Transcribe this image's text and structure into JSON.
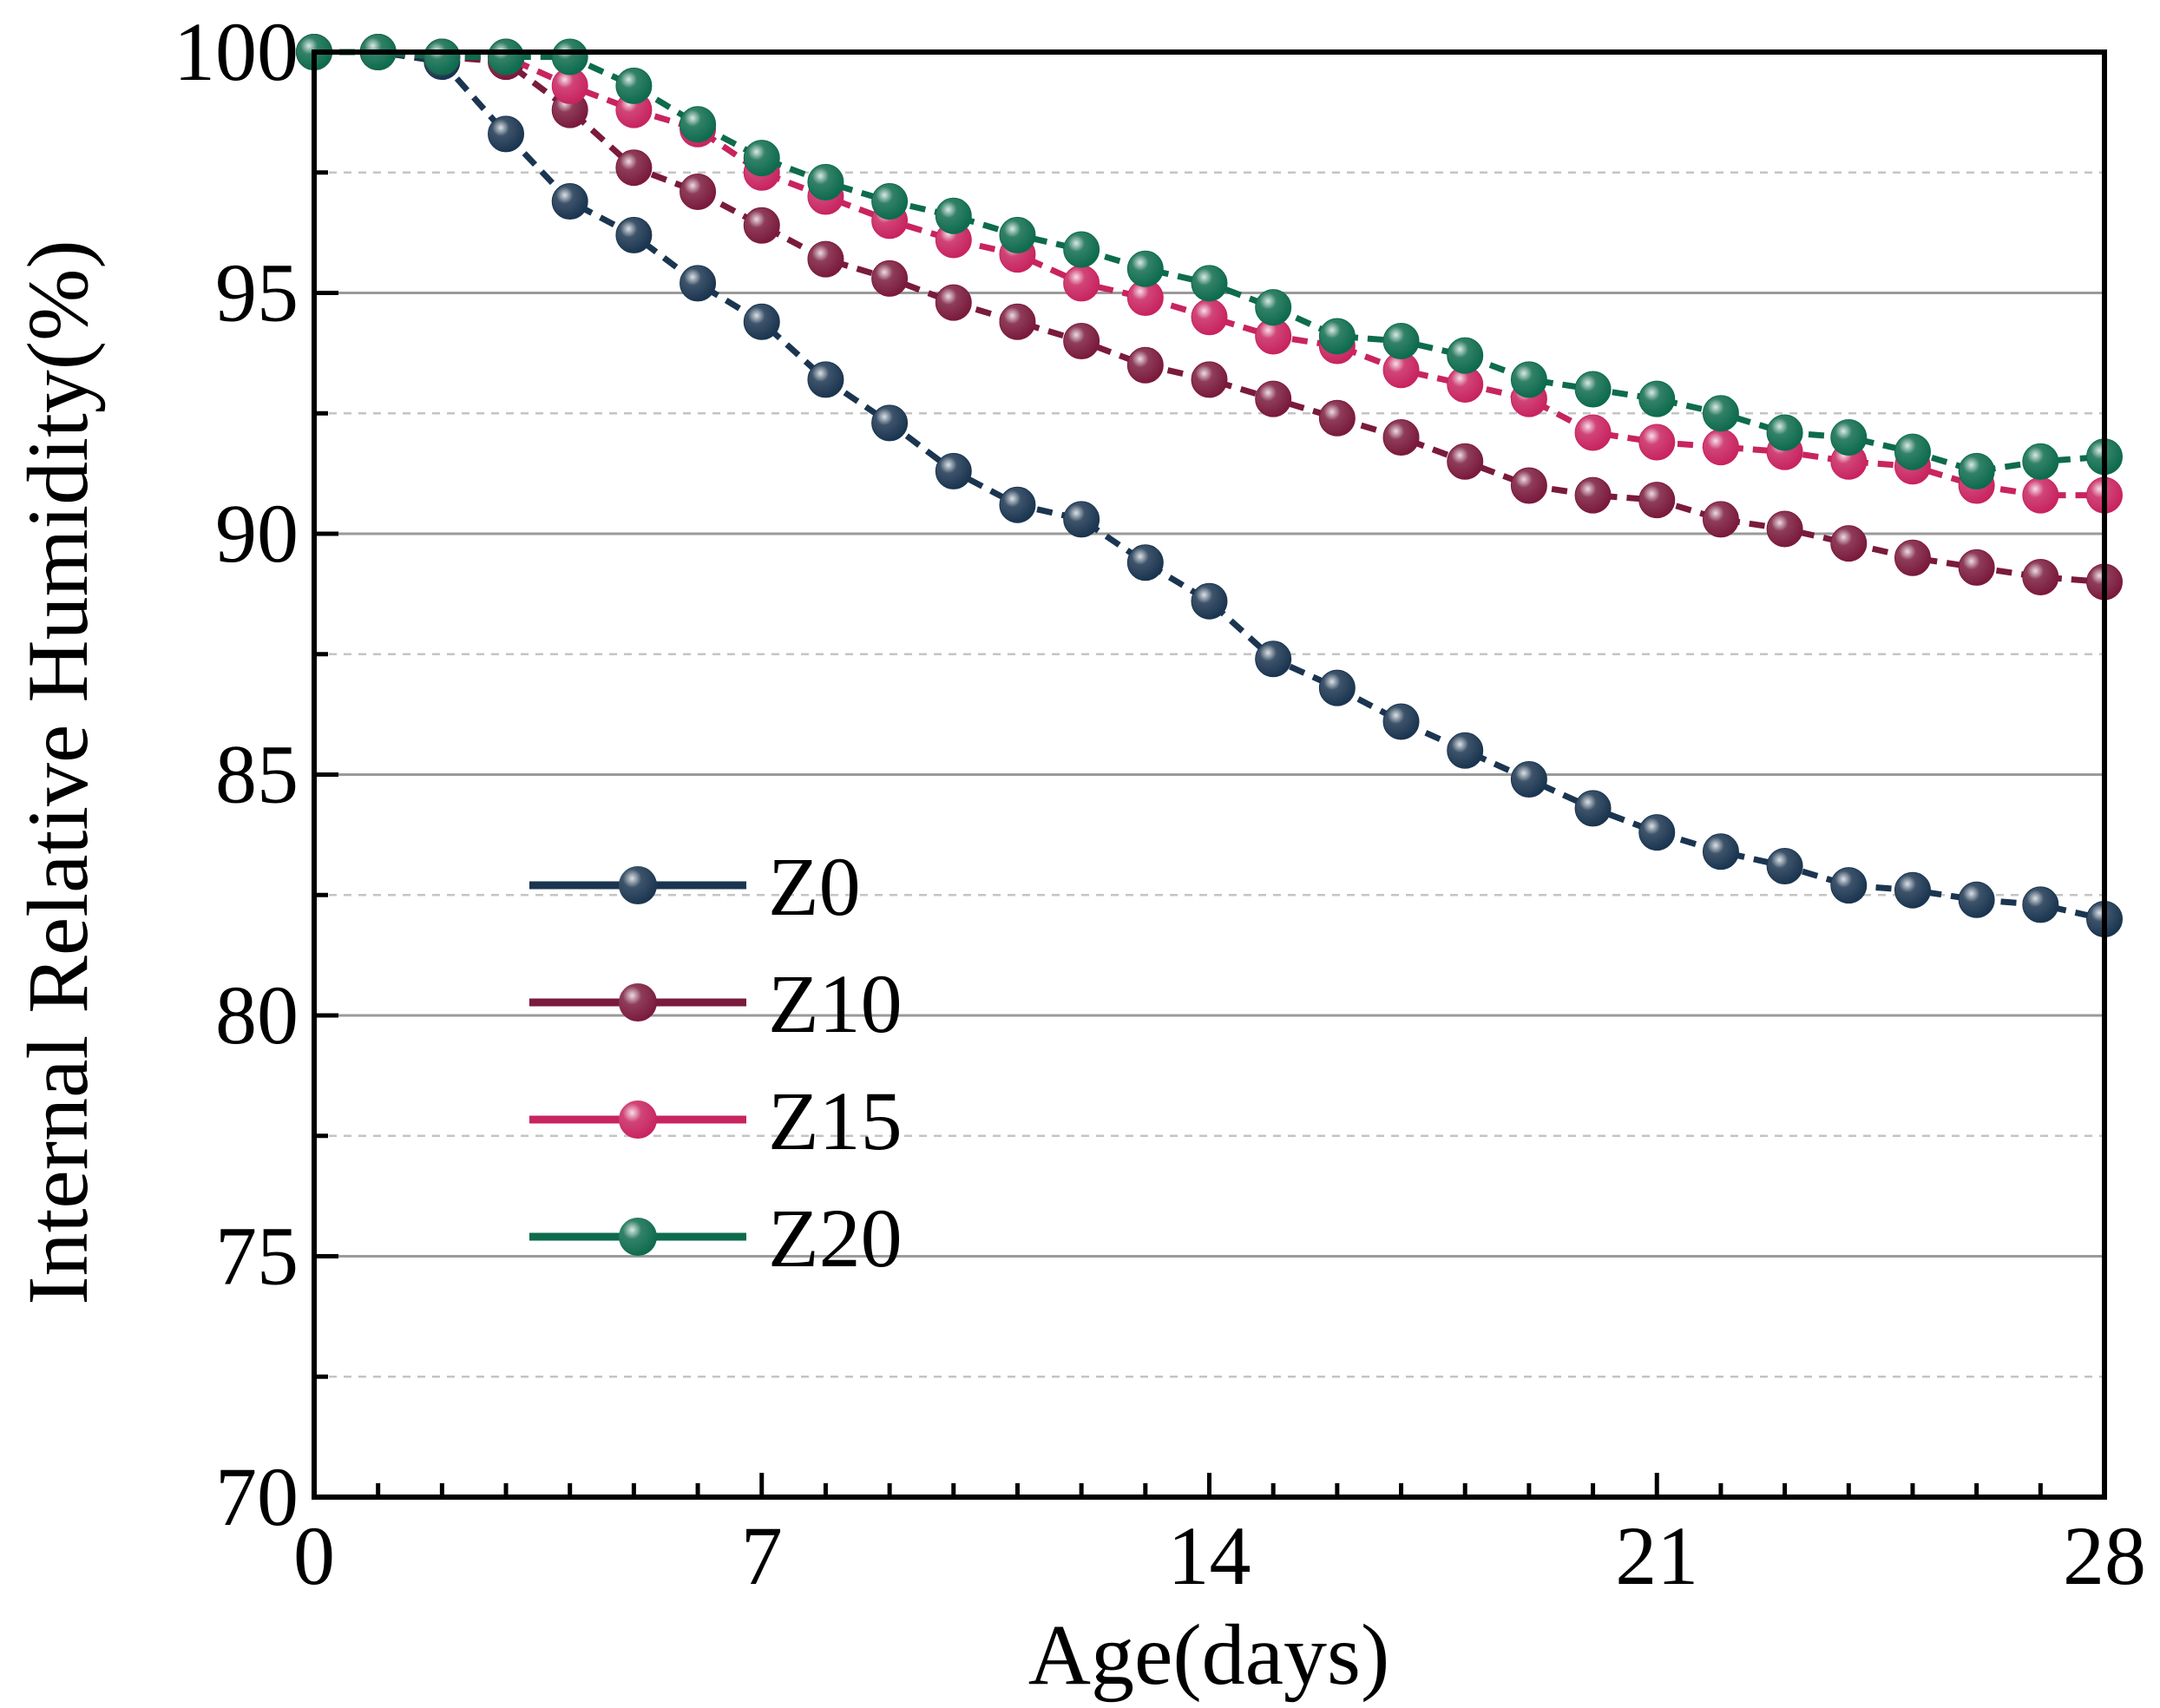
{
  "chart_data": {
    "type": "line",
    "title": "",
    "xlabel": "Age(days)",
    "ylabel": "Internal Relative Humidity(%)",
    "xlim": [
      0,
      28
    ],
    "ylim": [
      70,
      100
    ],
    "xticks": [
      0,
      7,
      14,
      21,
      28
    ],
    "yticks": [
      70,
      75,
      80,
      85,
      90,
      95,
      100
    ],
    "grid": {
      "major": true,
      "minor": true
    },
    "legend_position": "lower-left",
    "x": [
      0,
      1,
      2,
      3,
      4,
      5,
      6,
      7,
      8,
      9,
      10,
      11,
      12,
      13,
      14,
      15,
      16,
      17,
      18,
      19,
      20,
      21,
      22,
      23,
      24,
      25,
      26,
      27,
      28
    ],
    "series": [
      {
        "name": "Z0",
        "color": "#1b3550",
        "values": [
          100,
          100,
          99.8,
          98.3,
          96.9,
          96.2,
          95.2,
          94.4,
          93.2,
          92.3,
          91.3,
          90.6,
          90.3,
          89.4,
          88.6,
          87.4,
          86.8,
          86.1,
          85.5,
          84.9,
          84.3,
          83.8,
          83.4,
          83.1,
          82.7,
          82.6,
          82.4,
          82.3,
          82.0
        ]
      },
      {
        "name": "Z10",
        "color": "#7a1a3c",
        "values": [
          100,
          100,
          99.9,
          99.8,
          98.8,
          97.6,
          97.1,
          96.4,
          95.7,
          95.3,
          94.8,
          94.4,
          94.0,
          93.5,
          93.2,
          92.8,
          92.4,
          92.0,
          91.5,
          91.0,
          90.8,
          90.7,
          90.3,
          90.1,
          89.8,
          89.5,
          89.3,
          89.1,
          89.0
        ]
      },
      {
        "name": "Z15",
        "color": "#c8245f",
        "values": [
          100,
          100,
          99.9,
          99.9,
          99.3,
          98.8,
          98.4,
          97.5,
          97.0,
          96.5,
          96.1,
          95.8,
          95.2,
          94.9,
          94.5,
          94.1,
          93.9,
          93.4,
          93.1,
          92.8,
          92.1,
          91.9,
          91.8,
          91.7,
          91.5,
          91.4,
          91.0,
          90.8,
          90.8
        ]
      },
      {
        "name": "Z20",
        "color": "#0e6b4d",
        "values": [
          100,
          100,
          99.9,
          99.9,
          99.9,
          99.3,
          98.5,
          97.8,
          97.3,
          96.9,
          96.6,
          96.2,
          95.9,
          95.5,
          95.2,
          94.7,
          94.1,
          94.0,
          93.7,
          93.2,
          93.0,
          92.8,
          92.5,
          92.1,
          92.0,
          91.7,
          91.3,
          91.5,
          91.6
        ]
      }
    ]
  }
}
